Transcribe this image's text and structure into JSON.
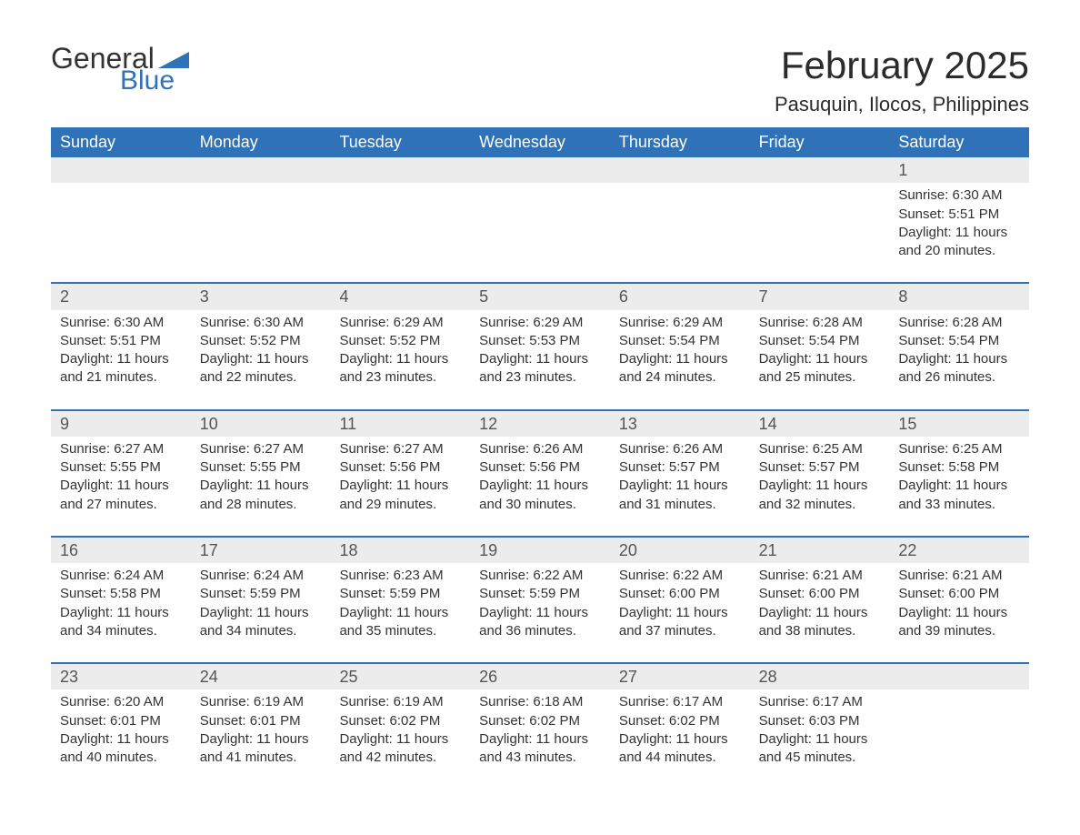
{
  "logo": {
    "text1": "General",
    "text2": "Blue",
    "accent_color": "#2f72b8"
  },
  "title": "February 2025",
  "location": "Pasuquin, Ilocos, Philippines",
  "style": {
    "header_bg": "#2f72b8",
    "header_fg": "#ffffff",
    "daynum_bg": "#ececec",
    "week_divider": "#2f72b8",
    "body_font_size": 15,
    "title_font_size": 42
  },
  "weekdays": [
    "Sunday",
    "Monday",
    "Tuesday",
    "Wednesday",
    "Thursday",
    "Friday",
    "Saturday"
  ],
  "weeks": [
    [
      null,
      null,
      null,
      null,
      null,
      null,
      {
        "d": "1",
        "sr": "Sunrise: 6:30 AM",
        "ss": "Sunset: 5:51 PM",
        "dl": "Daylight: 11 hours and 20 minutes."
      }
    ],
    [
      {
        "d": "2",
        "sr": "Sunrise: 6:30 AM",
        "ss": "Sunset: 5:51 PM",
        "dl": "Daylight: 11 hours and 21 minutes."
      },
      {
        "d": "3",
        "sr": "Sunrise: 6:30 AM",
        "ss": "Sunset: 5:52 PM",
        "dl": "Daylight: 11 hours and 22 minutes."
      },
      {
        "d": "4",
        "sr": "Sunrise: 6:29 AM",
        "ss": "Sunset: 5:52 PM",
        "dl": "Daylight: 11 hours and 23 minutes."
      },
      {
        "d": "5",
        "sr": "Sunrise: 6:29 AM",
        "ss": "Sunset: 5:53 PM",
        "dl": "Daylight: 11 hours and 23 minutes."
      },
      {
        "d": "6",
        "sr": "Sunrise: 6:29 AM",
        "ss": "Sunset: 5:54 PM",
        "dl": "Daylight: 11 hours and 24 minutes."
      },
      {
        "d": "7",
        "sr": "Sunrise: 6:28 AM",
        "ss": "Sunset: 5:54 PM",
        "dl": "Daylight: 11 hours and 25 minutes."
      },
      {
        "d": "8",
        "sr": "Sunrise: 6:28 AM",
        "ss": "Sunset: 5:54 PM",
        "dl": "Daylight: 11 hours and 26 minutes."
      }
    ],
    [
      {
        "d": "9",
        "sr": "Sunrise: 6:27 AM",
        "ss": "Sunset: 5:55 PM",
        "dl": "Daylight: 11 hours and 27 minutes."
      },
      {
        "d": "10",
        "sr": "Sunrise: 6:27 AM",
        "ss": "Sunset: 5:55 PM",
        "dl": "Daylight: 11 hours and 28 minutes."
      },
      {
        "d": "11",
        "sr": "Sunrise: 6:27 AM",
        "ss": "Sunset: 5:56 PM",
        "dl": "Daylight: 11 hours and 29 minutes."
      },
      {
        "d": "12",
        "sr": "Sunrise: 6:26 AM",
        "ss": "Sunset: 5:56 PM",
        "dl": "Daylight: 11 hours and 30 minutes."
      },
      {
        "d": "13",
        "sr": "Sunrise: 6:26 AM",
        "ss": "Sunset: 5:57 PM",
        "dl": "Daylight: 11 hours and 31 minutes."
      },
      {
        "d": "14",
        "sr": "Sunrise: 6:25 AM",
        "ss": "Sunset: 5:57 PM",
        "dl": "Daylight: 11 hours and 32 minutes."
      },
      {
        "d": "15",
        "sr": "Sunrise: 6:25 AM",
        "ss": "Sunset: 5:58 PM",
        "dl": "Daylight: 11 hours and 33 minutes."
      }
    ],
    [
      {
        "d": "16",
        "sr": "Sunrise: 6:24 AM",
        "ss": "Sunset: 5:58 PM",
        "dl": "Daylight: 11 hours and 34 minutes."
      },
      {
        "d": "17",
        "sr": "Sunrise: 6:24 AM",
        "ss": "Sunset: 5:59 PM",
        "dl": "Daylight: 11 hours and 34 minutes."
      },
      {
        "d": "18",
        "sr": "Sunrise: 6:23 AM",
        "ss": "Sunset: 5:59 PM",
        "dl": "Daylight: 11 hours and 35 minutes."
      },
      {
        "d": "19",
        "sr": "Sunrise: 6:22 AM",
        "ss": "Sunset: 5:59 PM",
        "dl": "Daylight: 11 hours and 36 minutes."
      },
      {
        "d": "20",
        "sr": "Sunrise: 6:22 AM",
        "ss": "Sunset: 6:00 PM",
        "dl": "Daylight: 11 hours and 37 minutes."
      },
      {
        "d": "21",
        "sr": "Sunrise: 6:21 AM",
        "ss": "Sunset: 6:00 PM",
        "dl": "Daylight: 11 hours and 38 minutes."
      },
      {
        "d": "22",
        "sr": "Sunrise: 6:21 AM",
        "ss": "Sunset: 6:00 PM",
        "dl": "Daylight: 11 hours and 39 minutes."
      }
    ],
    [
      {
        "d": "23",
        "sr": "Sunrise: 6:20 AM",
        "ss": "Sunset: 6:01 PM",
        "dl": "Daylight: 11 hours and 40 minutes."
      },
      {
        "d": "24",
        "sr": "Sunrise: 6:19 AM",
        "ss": "Sunset: 6:01 PM",
        "dl": "Daylight: 11 hours and 41 minutes."
      },
      {
        "d": "25",
        "sr": "Sunrise: 6:19 AM",
        "ss": "Sunset: 6:02 PM",
        "dl": "Daylight: 11 hours and 42 minutes."
      },
      {
        "d": "26",
        "sr": "Sunrise: 6:18 AM",
        "ss": "Sunset: 6:02 PM",
        "dl": "Daylight: 11 hours and 43 minutes."
      },
      {
        "d": "27",
        "sr": "Sunrise: 6:17 AM",
        "ss": "Sunset: 6:02 PM",
        "dl": "Daylight: 11 hours and 44 minutes."
      },
      {
        "d": "28",
        "sr": "Sunrise: 6:17 AM",
        "ss": "Sunset: 6:03 PM",
        "dl": "Daylight: 11 hours and 45 minutes."
      },
      null
    ]
  ]
}
